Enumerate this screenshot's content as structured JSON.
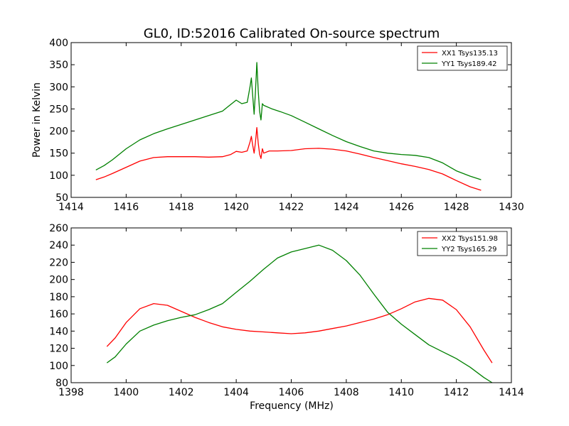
{
  "colors": {
    "red": "#ff0000",
    "green": "#008000"
  },
  "chart_data": [
    {
      "type": "line",
      "title": "GL0, ID:52016 Calibrated On-source spectrum",
      "xlabel": "",
      "ylabel": "Power in Kelvin",
      "xlim": [
        1414,
        1430
      ],
      "ylim": [
        50,
        400
      ],
      "xticks": [
        "1414",
        "1416",
        "1418",
        "1420",
        "1422",
        "1424",
        "1426",
        "1428",
        "1430"
      ],
      "yticks": [
        "50",
        "100",
        "150",
        "200",
        "250",
        "300",
        "350",
        "400"
      ],
      "grid": false,
      "legend": "top-right",
      "series": [
        {
          "name": "XX1 Tsys135.13",
          "color": "#ff0000",
          "points": [
            [
              1414.9,
              90
            ],
            [
              1415.2,
              96
            ],
            [
              1415.5,
              104
            ],
            [
              1416,
              118
            ],
            [
              1416.5,
              132
            ],
            [
              1417,
              140
            ],
            [
              1417.5,
              142
            ],
            [
              1418,
              142
            ],
            [
              1418.5,
              142
            ],
            [
              1419,
              141
            ],
            [
              1419.5,
              142
            ],
            [
              1419.8,
              147
            ],
            [
              1420,
              154
            ],
            [
              1420.2,
              152
            ],
            [
              1420.4,
              155
            ],
            [
              1420.5,
              175
            ],
            [
              1420.55,
              188
            ],
            [
              1420.6,
              168
            ],
            [
              1420.65,
              150
            ],
            [
              1420.7,
              175
            ],
            [
              1420.75,
              208
            ],
            [
              1420.8,
              172
            ],
            [
              1420.85,
              148
            ],
            [
              1420.9,
              138
            ],
            [
              1420.95,
              160
            ],
            [
              1421.0,
              150
            ],
            [
              1421.2,
              155
            ],
            [
              1421.5,
              155
            ],
            [
              1422,
              156
            ],
            [
              1422.5,
              160
            ],
            [
              1423,
              161
            ],
            [
              1423.5,
              159
            ],
            [
              1424,
              155
            ],
            [
              1424.5,
              148
            ],
            [
              1425,
              140
            ],
            [
              1425.5,
              133
            ],
            [
              1426,
              126
            ],
            [
              1426.5,
              120
            ],
            [
              1427,
              113
            ],
            [
              1427.5,
              103
            ],
            [
              1428,
              88
            ],
            [
              1428.5,
              74
            ],
            [
              1428.9,
              66
            ]
          ]
        },
        {
          "name": "YY1 Tsys189.42",
          "color": "#008000",
          "points": [
            [
              1414.9,
              112
            ],
            [
              1415.2,
              122
            ],
            [
              1415.5,
              135
            ],
            [
              1416,
              160
            ],
            [
              1416.5,
              180
            ],
            [
              1417,
              194
            ],
            [
              1417.5,
              205
            ],
            [
              1418,
              215
            ],
            [
              1418.5,
              225
            ],
            [
              1419,
              235
            ],
            [
              1419.5,
              245
            ],
            [
              1419.7,
              255
            ],
            [
              1420,
              270
            ],
            [
              1420.2,
              262
            ],
            [
              1420.4,
              265
            ],
            [
              1420.5,
              300
            ],
            [
              1420.55,
              320
            ],
            [
              1420.6,
              280
            ],
            [
              1420.65,
              238
            ],
            [
              1420.7,
              290
            ],
            [
              1420.75,
              355
            ],
            [
              1420.8,
              290
            ],
            [
              1420.85,
              245
            ],
            [
              1420.9,
              225
            ],
            [
              1420.95,
              262
            ],
            [
              1421.0,
              258
            ],
            [
              1421.3,
              250
            ],
            [
              1421.6,
              244
            ],
            [
              1422,
              235
            ],
            [
              1422.5,
              220
            ],
            [
              1423,
              205
            ],
            [
              1423.5,
              190
            ],
            [
              1424,
              176
            ],
            [
              1424.5,
              165
            ],
            [
              1425,
              155
            ],
            [
              1425.5,
              150
            ],
            [
              1426,
              147
            ],
            [
              1426.5,
              145
            ],
            [
              1427,
              140
            ],
            [
              1427.5,
              128
            ],
            [
              1428,
              110
            ],
            [
              1428.5,
              98
            ],
            [
              1428.9,
              90
            ]
          ]
        }
      ]
    },
    {
      "type": "line",
      "title": "",
      "xlabel": "Frequency (MHz)",
      "ylabel": "",
      "xlim": [
        1398,
        1414
      ],
      "ylim": [
        80,
        260
      ],
      "xticks": [
        "1398",
        "1400",
        "1402",
        "1404",
        "1406",
        "1408",
        "1410",
        "1412",
        "1414"
      ],
      "yticks": [
        "80",
        "100",
        "120",
        "140",
        "160",
        "180",
        "200",
        "220",
        "240",
        "260"
      ],
      "grid": false,
      "legend": "top-right",
      "series": [
        {
          "name": "XX2 Tsys151.98",
          "color": "#ff0000",
          "points": [
            [
              1399.3,
              122
            ],
            [
              1399.6,
              132
            ],
            [
              1400,
              150
            ],
            [
              1400.5,
              166
            ],
            [
              1401,
              172
            ],
            [
              1401.5,
              170
            ],
            [
              1402,
              163
            ],
            [
              1402.5,
              156
            ],
            [
              1403,
              150
            ],
            [
              1403.5,
              145
            ],
            [
              1404,
              142
            ],
            [
              1404.5,
              140
            ],
            [
              1405,
              139
            ],
            [
              1405.5,
              138
            ],
            [
              1406,
              137
            ],
            [
              1406.5,
              138
            ],
            [
              1407,
              140
            ],
            [
              1407.5,
              143
            ],
            [
              1408,
              146
            ],
            [
              1408.5,
              150
            ],
            [
              1409,
              154
            ],
            [
              1409.5,
              159
            ],
            [
              1410,
              166
            ],
            [
              1410.5,
              174
            ],
            [
              1411,
              178
            ],
            [
              1411.5,
              176
            ],
            [
              1412,
              165
            ],
            [
              1412.5,
              145
            ],
            [
              1413,
              118
            ],
            [
              1413.3,
              103
            ]
          ]
        },
        {
          "name": "YY2 Tsys165.29",
          "color": "#008000",
          "points": [
            [
              1399.3,
              103
            ],
            [
              1399.6,
              110
            ],
            [
              1400,
              125
            ],
            [
              1400.5,
              140
            ],
            [
              1401,
              147
            ],
            [
              1401.5,
              152
            ],
            [
              1402,
              156
            ],
            [
              1402.5,
              159
            ],
            [
              1403,
              165
            ],
            [
              1403.5,
              172
            ],
            [
              1404,
              185
            ],
            [
              1404.5,
              198
            ],
            [
              1405,
              212
            ],
            [
              1405.5,
              225
            ],
            [
              1406,
              232
            ],
            [
              1406.5,
              236
            ],
            [
              1407,
              240
            ],
            [
              1407.5,
              234
            ],
            [
              1408,
              222
            ],
            [
              1408.5,
              205
            ],
            [
              1409,
              183
            ],
            [
              1409.5,
              162
            ],
            [
              1410,
              148
            ],
            [
              1410.5,
              136
            ],
            [
              1411,
              124
            ],
            [
              1411.5,
              116
            ],
            [
              1412,
              108
            ],
            [
              1412.5,
              98
            ],
            [
              1413,
              86
            ],
            [
              1413.3,
              80
            ]
          ]
        }
      ]
    }
  ]
}
